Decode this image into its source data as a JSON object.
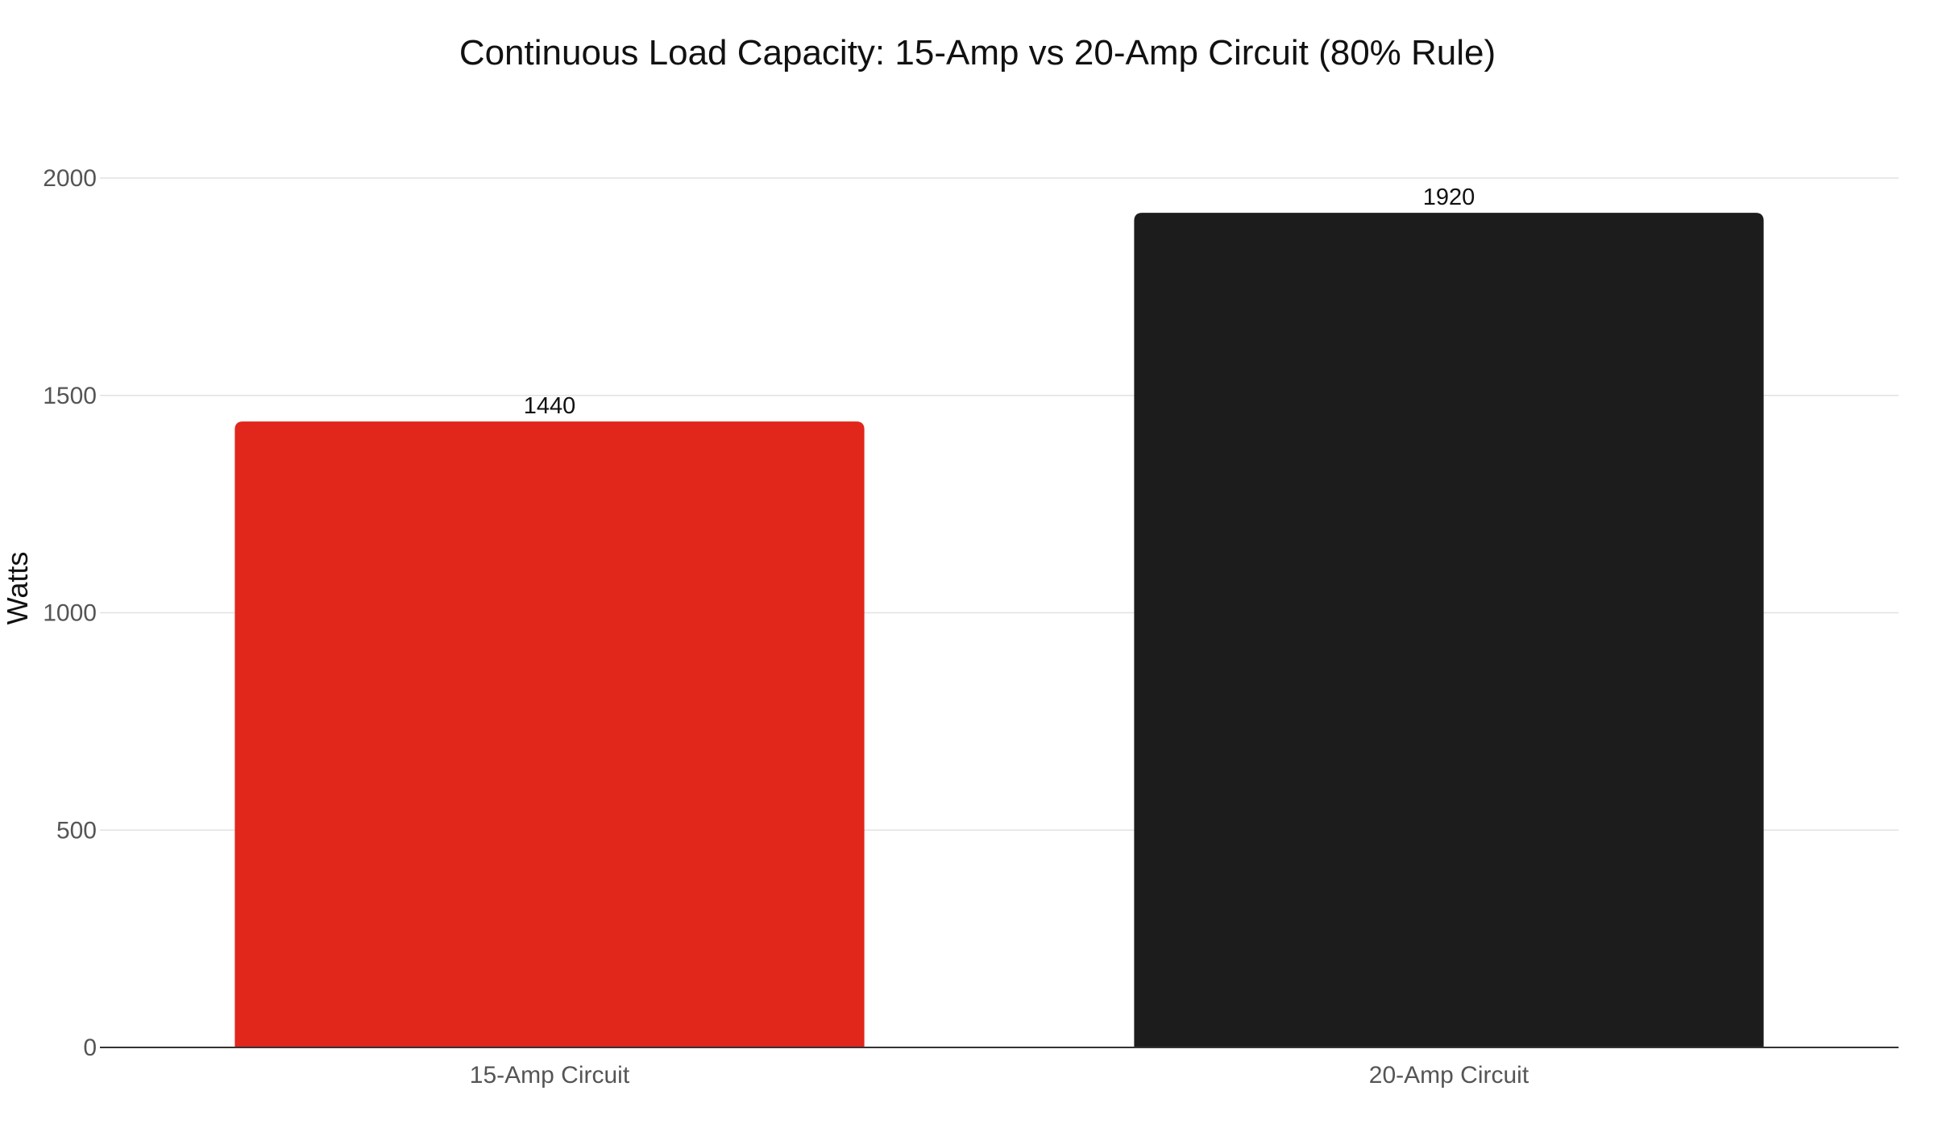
{
  "chart_data": {
    "type": "bar",
    "title": "Continuous Load Capacity: 15-Amp vs 20-Amp Circuit (80% Rule)",
    "xlabel": "",
    "ylabel": "Watts",
    "categories": [
      "15-Amp Circuit",
      "20-Amp Circuit"
    ],
    "values": [
      1440,
      1920
    ],
    "value_labels": [
      "1440",
      "1920"
    ],
    "colors": [
      "#e1261c",
      "#1c1c1c"
    ],
    "ylim": [
      0,
      2000
    ],
    "yticks": [
      0,
      500,
      1000,
      1500,
      2000
    ],
    "ytick_labels": [
      "0",
      "500",
      "1000",
      "1500",
      "2000"
    ],
    "grid": true,
    "legend": "none"
  }
}
